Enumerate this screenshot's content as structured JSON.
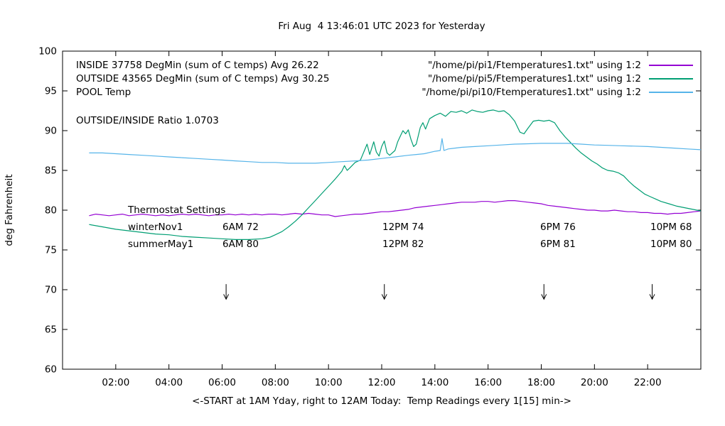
{
  "title": "Fri Aug  4 13:46:01 UTC 2023 for Yesterday",
  "ratio_text": "OUTSIDE/INSIDE Ratio 1.0703",
  "legend": {
    "rows": [
      {
        "label": "INSIDE 37758 DegMin (sum of C temps) Avg 26.22",
        "file": "\"/home/pi/pi1/Ftemperatures1.txt\" using 1:2",
        "color": "#9400d3"
      },
      {
        "label": "OUTSIDE 43565 DegMin (sum of C temps) Avg 30.25",
        "file": "\"/home/pi/pi5/Ftemperatures1.txt\" using 1:2",
        "color": "#009e73"
      },
      {
        "label": "POOL Temp",
        "file": "\"/home/pi/pi10/Ftemperatures1.txt\" using 1:2",
        "color": "#56b4e9"
      }
    ]
  },
  "thermostat": {
    "heading": "Thermostat Settings",
    "rows": [
      {
        "season": "winterNov1",
        "c1": "6AM 72",
        "c2": "12PM 74",
        "c3": "6PM 76",
        "c4": "10PM 68"
      },
      {
        "season": "summerMay1",
        "c1": "6AM 80",
        "c2": "12PM 82",
        "c3": "6PM 81",
        "c4": "10PM 80"
      }
    ]
  },
  "chart_data": {
    "type": "line",
    "title": "Fri Aug  4 13:46:01 UTC 2023 for Yesterday",
    "xlabel": "<-START at 1AM Yday, right to 12AM Today:  Temp Readings every 1[15] min->",
    "ylabel": "deg Fahrenheit",
    "xlim": [
      0,
      24
    ],
    "ylim": [
      60,
      100
    ],
    "grid": false,
    "legend_position": "top-left-inside",
    "x_ticks": [
      {
        "t": 2,
        "label": "02:00"
      },
      {
        "t": 4,
        "label": "04:00"
      },
      {
        "t": 6,
        "label": "06:00"
      },
      {
        "t": 8,
        "label": "08:00"
      },
      {
        "t": 10,
        "label": "10:00"
      },
      {
        "t": 12,
        "label": "12:00"
      },
      {
        "t": 14,
        "label": "14:00"
      },
      {
        "t": 16,
        "label": "16:00"
      },
      {
        "t": 18,
        "label": "18:00"
      },
      {
        "t": 20,
        "label": "20:00"
      },
      {
        "t": 22,
        "label": "22:00"
      }
    ],
    "y_ticks": [
      60,
      65,
      70,
      75,
      80,
      85,
      90,
      95,
      100
    ],
    "arrows": {
      "x": [
        6.15,
        12.1,
        18.1,
        22.17
      ],
      "y_start": 70.7,
      "y_end": 68.8
    },
    "series": [
      {
        "name": "INSIDE",
        "color": "#9400d3",
        "points": [
          [
            1,
            79.3
          ],
          [
            1.25,
            79.5
          ],
          [
            1.5,
            79.4
          ],
          [
            1.75,
            79.3
          ],
          [
            2,
            79.4
          ],
          [
            2.25,
            79.5
          ],
          [
            2.5,
            79.3
          ],
          [
            2.75,
            79.4
          ],
          [
            3,
            79.5
          ],
          [
            3.25,
            79.4
          ],
          [
            3.5,
            79.3
          ],
          [
            3.75,
            79.4
          ],
          [
            4,
            79.3
          ],
          [
            4.25,
            79.4
          ],
          [
            4.5,
            79.5
          ],
          [
            4.75,
            79.4
          ],
          [
            5,
            79.5
          ],
          [
            5.25,
            79.4
          ],
          [
            5.5,
            79.3
          ],
          [
            5.75,
            79.4
          ],
          [
            6,
            79.4
          ],
          [
            6.25,
            79.5
          ],
          [
            6.5,
            79.4
          ],
          [
            6.75,
            79.5
          ],
          [
            7,
            79.4
          ],
          [
            7.25,
            79.5
          ],
          [
            7.5,
            79.4
          ],
          [
            7.75,
            79.5
          ],
          [
            8,
            79.5
          ],
          [
            8.25,
            79.4
          ],
          [
            8.5,
            79.5
          ],
          [
            8.75,
            79.6
          ],
          [
            9,
            79.5
          ],
          [
            9.25,
            79.6
          ],
          [
            9.5,
            79.5
          ],
          [
            9.75,
            79.4
          ],
          [
            10,
            79.4
          ],
          [
            10.25,
            79.2
          ],
          [
            10.5,
            79.3
          ],
          [
            10.75,
            79.4
          ],
          [
            11,
            79.5
          ],
          [
            11.25,
            79.5
          ],
          [
            11.5,
            79.6
          ],
          [
            11.75,
            79.7
          ],
          [
            12,
            79.8
          ],
          [
            12.25,
            79.8
          ],
          [
            12.5,
            79.9
          ],
          [
            12.75,
            80
          ],
          [
            13,
            80.1
          ],
          [
            13.25,
            80.3
          ],
          [
            13.5,
            80.4
          ],
          [
            13.75,
            80.5
          ],
          [
            14,
            80.6
          ],
          [
            14.25,
            80.7
          ],
          [
            14.5,
            80.8
          ],
          [
            14.75,
            80.9
          ],
          [
            15,
            81
          ],
          [
            15.25,
            81
          ],
          [
            15.5,
            81
          ],
          [
            15.75,
            81.1
          ],
          [
            16,
            81.1
          ],
          [
            16.25,
            81
          ],
          [
            16.5,
            81.1
          ],
          [
            16.75,
            81.2
          ],
          [
            17,
            81.2
          ],
          [
            17.25,
            81.1
          ],
          [
            17.5,
            81
          ],
          [
            17.75,
            80.9
          ],
          [
            18,
            80.8
          ],
          [
            18.25,
            80.6
          ],
          [
            18.5,
            80.5
          ],
          [
            18.75,
            80.4
          ],
          [
            19,
            80.3
          ],
          [
            19.25,
            80.2
          ],
          [
            19.5,
            80.1
          ],
          [
            19.75,
            80
          ],
          [
            20,
            80
          ],
          [
            20.25,
            79.9
          ],
          [
            20.5,
            79.9
          ],
          [
            20.75,
            80
          ],
          [
            21,
            79.9
          ],
          [
            21.25,
            79.8
          ],
          [
            21.5,
            79.8
          ],
          [
            21.75,
            79.7
          ],
          [
            22,
            79.7
          ],
          [
            22.25,
            79.6
          ],
          [
            22.5,
            79.6
          ],
          [
            22.75,
            79.5
          ],
          [
            23,
            79.6
          ],
          [
            23.25,
            79.6
          ],
          [
            23.5,
            79.7
          ],
          [
            23.75,
            79.8
          ],
          [
            24,
            79.9
          ]
        ]
      },
      {
        "name": "OUTSIDE",
        "color": "#009e73",
        "points": [
          [
            1,
            78.2
          ],
          [
            1.5,
            77.9
          ],
          [
            2,
            77.6
          ],
          [
            2.5,
            77.4
          ],
          [
            3,
            77.2
          ],
          [
            3.5,
            77
          ],
          [
            4,
            76.9
          ],
          [
            4.5,
            76.7
          ],
          [
            5,
            76.6
          ],
          [
            5.5,
            76.5
          ],
          [
            6,
            76.4
          ],
          [
            6.5,
            76.3
          ],
          [
            7,
            76.3
          ],
          [
            7.5,
            76.4
          ],
          [
            7.8,
            76.6
          ],
          [
            8,
            76.9
          ],
          [
            8.25,
            77.3
          ],
          [
            8.5,
            77.9
          ],
          [
            8.75,
            78.6
          ],
          [
            9,
            79.4
          ],
          [
            9.25,
            80.3
          ],
          [
            9.5,
            81.2
          ],
          [
            9.75,
            82.1
          ],
          [
            10,
            83
          ],
          [
            10.25,
            83.9
          ],
          [
            10.4,
            84.5
          ],
          [
            10.5,
            84.9
          ],
          [
            10.6,
            85.6
          ],
          [
            10.7,
            85
          ],
          [
            10.8,
            85.3
          ],
          [
            11,
            86
          ],
          [
            11.2,
            86.3
          ],
          [
            11.35,
            87.5
          ],
          [
            11.45,
            88.3
          ],
          [
            11.55,
            87
          ],
          [
            11.7,
            88.6
          ],
          [
            11.8,
            87.3
          ],
          [
            11.9,
            86.8
          ],
          [
            12,
            88
          ],
          [
            12.1,
            88.7
          ],
          [
            12.2,
            87.2
          ],
          [
            12.3,
            86.9
          ],
          [
            12.5,
            87.5
          ],
          [
            12.6,
            88.6
          ],
          [
            12.7,
            89.3
          ],
          [
            12.8,
            90
          ],
          [
            12.9,
            89.6
          ],
          [
            13,
            90.1
          ],
          [
            13.1,
            88.9
          ],
          [
            13.2,
            88
          ],
          [
            13.3,
            88.3
          ],
          [
            13.45,
            90.4
          ],
          [
            13.55,
            91
          ],
          [
            13.65,
            90.2
          ],
          [
            13.8,
            91.5
          ],
          [
            14,
            91.9
          ],
          [
            14.2,
            92.2
          ],
          [
            14.4,
            91.8
          ],
          [
            14.6,
            92.4
          ],
          [
            14.8,
            92.3
          ],
          [
            15,
            92.5
          ],
          [
            15.2,
            92.2
          ],
          [
            15.4,
            92.6
          ],
          [
            15.6,
            92.4
          ],
          [
            15.8,
            92.3
          ],
          [
            16,
            92.5
          ],
          [
            16.2,
            92.6
          ],
          [
            16.4,
            92.4
          ],
          [
            16.6,
            92.5
          ],
          [
            16.8,
            92
          ],
          [
            17,
            91.2
          ],
          [
            17.2,
            89.8
          ],
          [
            17.35,
            89.6
          ],
          [
            17.5,
            90.3
          ],
          [
            17.7,
            91.2
          ],
          [
            17.9,
            91.3
          ],
          [
            18.1,
            91.2
          ],
          [
            18.3,
            91.3
          ],
          [
            18.5,
            91
          ],
          [
            18.7,
            90
          ],
          [
            18.9,
            89.2
          ],
          [
            19.1,
            88.5
          ],
          [
            19.3,
            87.8
          ],
          [
            19.5,
            87.2
          ],
          [
            19.7,
            86.7
          ],
          [
            19.9,
            86.2
          ],
          [
            20.1,
            85.8
          ],
          [
            20.3,
            85.3
          ],
          [
            20.5,
            85
          ],
          [
            20.7,
            84.9
          ],
          [
            20.9,
            84.7
          ],
          [
            21.1,
            84.3
          ],
          [
            21.3,
            83.6
          ],
          [
            21.5,
            83
          ],
          [
            21.7,
            82.5
          ],
          [
            21.9,
            82
          ],
          [
            22.1,
            81.7
          ],
          [
            22.3,
            81.4
          ],
          [
            22.5,
            81.1
          ],
          [
            22.8,
            80.8
          ],
          [
            23.1,
            80.5
          ],
          [
            23.4,
            80.3
          ],
          [
            23.7,
            80.1
          ],
          [
            24,
            79.9
          ]
        ]
      },
      {
        "name": "POOL",
        "color": "#56b4e9",
        "points": [
          [
            1,
            87.2
          ],
          [
            1.5,
            87.2
          ],
          [
            2,
            87.1
          ],
          [
            2.5,
            87
          ],
          [
            3,
            86.9
          ],
          [
            3.5,
            86.8
          ],
          [
            4,
            86.7
          ],
          [
            4.5,
            86.6
          ],
          [
            5,
            86.5
          ],
          [
            5.5,
            86.4
          ],
          [
            6,
            86.3
          ],
          [
            6.5,
            86.2
          ],
          [
            7,
            86.1
          ],
          [
            7.5,
            86
          ],
          [
            8,
            86
          ],
          [
            8.5,
            85.9
          ],
          [
            9,
            85.9
          ],
          [
            9.5,
            85.9
          ],
          [
            10,
            86
          ],
          [
            10.5,
            86.1
          ],
          [
            11,
            86.2
          ],
          [
            11.5,
            86.3
          ],
          [
            12,
            86.5
          ],
          [
            12.5,
            86.7
          ],
          [
            13,
            86.9
          ],
          [
            13.3,
            87
          ],
          [
            13.6,
            87.1
          ],
          [
            14,
            87.4
          ],
          [
            14.2,
            87.5
          ],
          [
            14.27,
            89
          ],
          [
            14.34,
            87.5
          ],
          [
            14.5,
            87.7
          ],
          [
            15,
            87.9
          ],
          [
            15.5,
            88
          ],
          [
            16,
            88.1
          ],
          [
            16.5,
            88.2
          ],
          [
            17,
            88.3
          ],
          [
            17.5,
            88.35
          ],
          [
            18,
            88.4
          ],
          [
            18.5,
            88.4
          ],
          [
            19,
            88.4
          ],
          [
            19.5,
            88.3
          ],
          [
            20,
            88.2
          ],
          [
            20.5,
            88.15
          ],
          [
            21,
            88.1
          ],
          [
            21.5,
            88.05
          ],
          [
            22,
            88
          ],
          [
            22.5,
            87.9
          ],
          [
            23,
            87.8
          ],
          [
            23.5,
            87.7
          ],
          [
            24,
            87.6
          ]
        ]
      }
    ]
  }
}
